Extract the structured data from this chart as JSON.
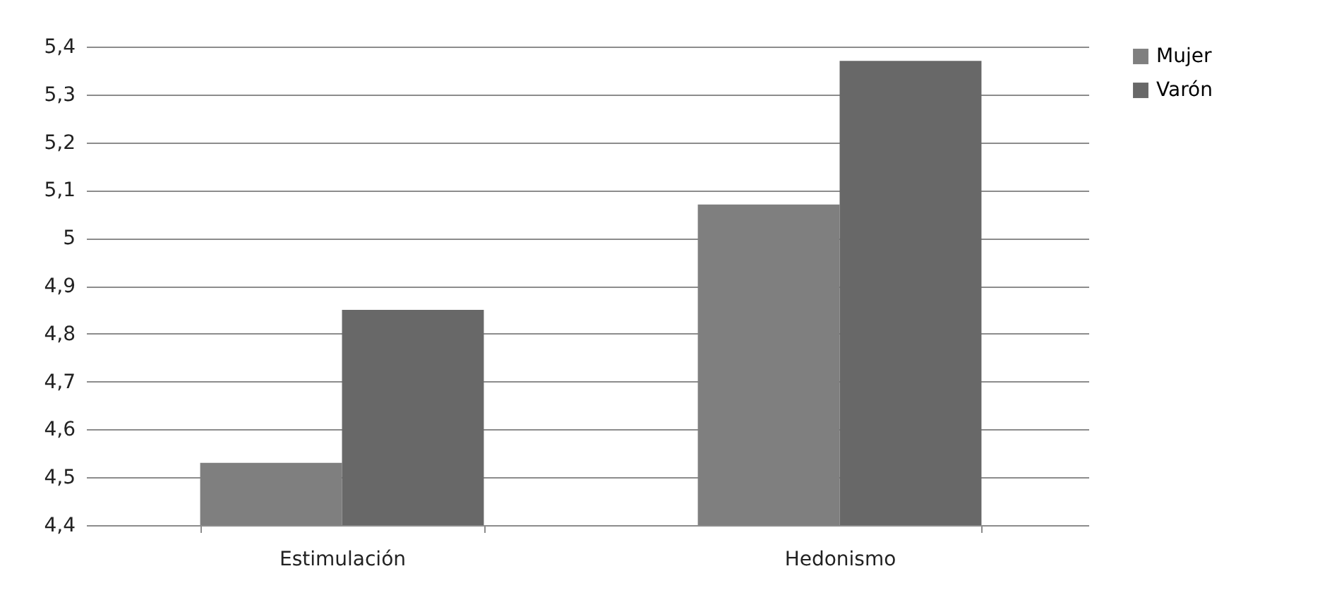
{
  "chart_data": {
    "type": "bar",
    "categories": [
      "Estimulación",
      "Hedonismo"
    ],
    "series": [
      {
        "name": "Mujer",
        "color": "#7f7f7f",
        "values": [
          4.53,
          5.07
        ]
      },
      {
        "name": "Varón",
        "color": "#686868",
        "values": [
          4.85,
          5.37
        ]
      }
    ],
    "ylim": [
      4.4,
      5.4
    ],
    "yticks": [
      {
        "value": 4.4,
        "label": "4,4"
      },
      {
        "value": 4.5,
        "label": "4,5"
      },
      {
        "value": 4.6,
        "label": "4,6"
      },
      {
        "value": 4.7,
        "label": "4,7"
      },
      {
        "value": 4.8,
        "label": "4,8"
      },
      {
        "value": 4.9,
        "label": "4,9"
      },
      5,
      {
        "value": 5.1,
        "label": "5,1"
      },
      {
        "value": 5.2,
        "label": "5,2"
      },
      {
        "value": 5.3,
        "label": "5,3"
      },
      {
        "value": 5.4,
        "label": "5,4"
      }
    ],
    "grid": "y",
    "legend": "right"
  }
}
